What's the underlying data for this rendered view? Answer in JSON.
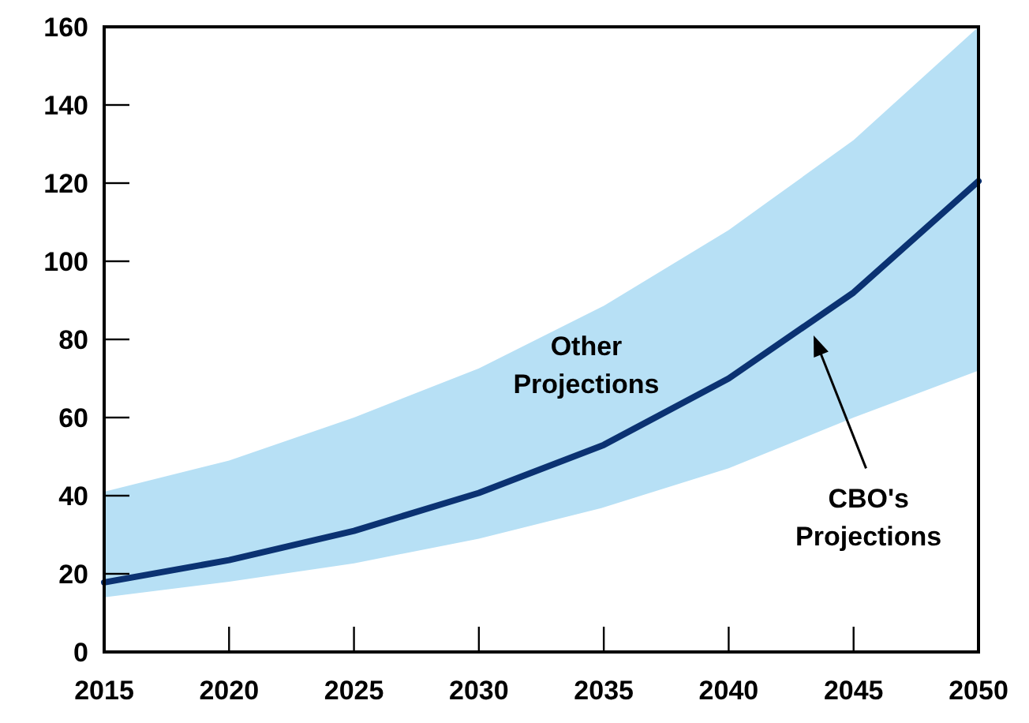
{
  "chart_data": {
    "type": "line",
    "x": [
      2015,
      2020,
      2025,
      2030,
      2035,
      2040,
      2045,
      2050
    ],
    "series": [
      {
        "name": "CBO's Projections",
        "color": "#0b3272",
        "values": [
          17.8,
          23.5,
          31,
          40.7,
          53,
          70,
          92,
          120.5
        ],
        "lower": [
          14,
          18,
          22.7,
          29,
          37,
          47,
          60,
          72
        ],
        "upper": [
          41,
          49,
          60,
          72.6,
          88.6,
          108,
          131,
          160
        ]
      }
    ],
    "annotations": [
      "Other Projections"
    ],
    "xlim": [
      2015,
      2050
    ],
    "xticks": [
      2015,
      2020,
      2025,
      2030,
      2035,
      2040,
      2045,
      2050
    ],
    "ylim": [
      0,
      160
    ],
    "yticks": [
      0,
      20,
      40,
      60,
      80,
      100,
      120,
      140,
      160
    ],
    "grid": false,
    "marker": "none",
    "line_style": "solid"
  }
}
